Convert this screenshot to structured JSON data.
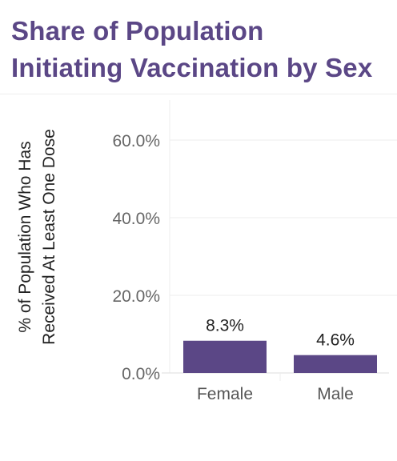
{
  "title_lines": [
    "Share of Population",
    "Initiating Vaccination by Sex"
  ],
  "colors": {
    "title": "#5b4786",
    "bar": "#5b4786",
    "grid": "#eeeeee"
  },
  "chart_data": {
    "type": "bar",
    "title": "Share of Population Initiating Vaccination by Sex",
    "ylabel_lines": [
      "% of Population Who Has",
      "Received At Least One Dose"
    ],
    "xlabel": "",
    "categories": [
      "Female",
      "Male"
    ],
    "values": [
      8.3,
      4.6
    ],
    "data_labels": [
      "8.3%",
      "4.6%"
    ],
    "yticks": [
      0,
      20,
      40,
      60
    ],
    "ytick_labels": [
      "0.0%",
      "20.0%",
      "40.0%",
      "60.0%"
    ],
    "ylim": [
      0,
      70
    ],
    "grid": true,
    "legend": "none"
  }
}
